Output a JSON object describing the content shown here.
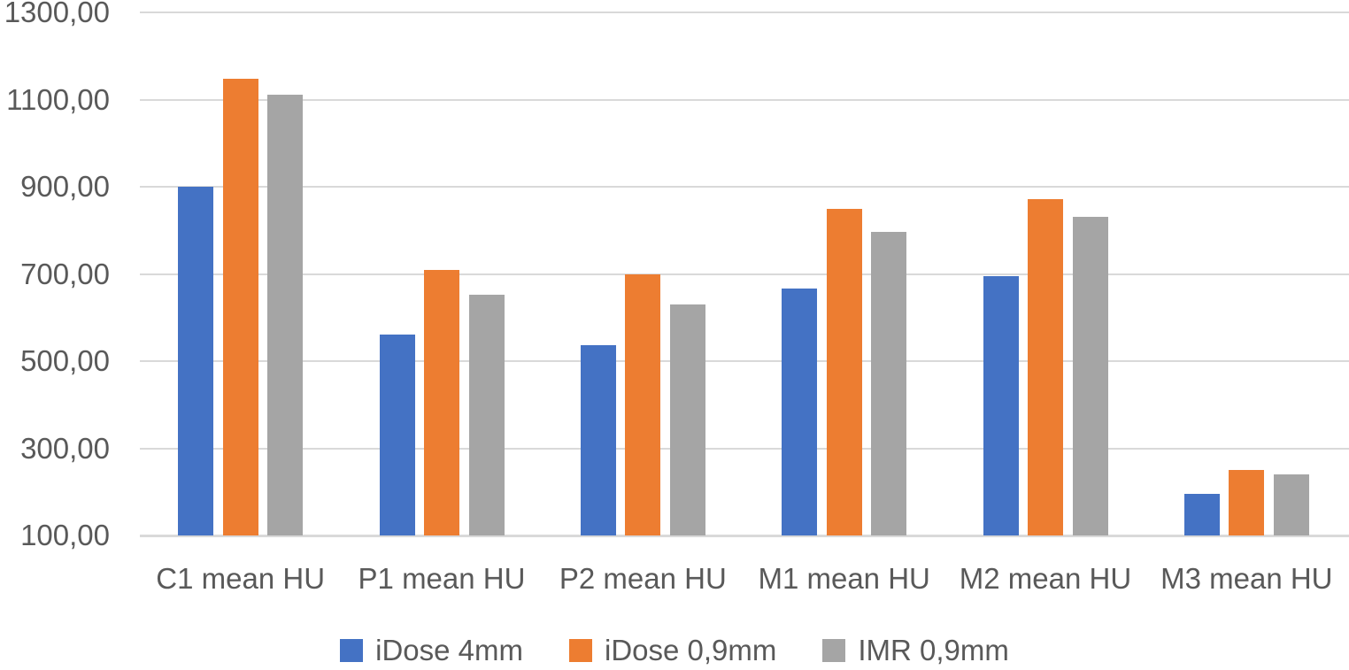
{
  "chart_data": {
    "type": "bar",
    "title": "",
    "xlabel": "",
    "ylabel": "",
    "categories": [
      "C1 mean HU",
      "P1 mean HU",
      "P2 mean HU",
      "M1 mean HU",
      "M2 mean HU",
      "M3 mean HU"
    ],
    "series": [
      {
        "name": "iDose 4mm",
        "color": "#4472C4",
        "values": [
          900,
          560,
          537,
          666,
          695,
          195
        ]
      },
      {
        "name": "iDose 0,9mm",
        "color": "#ED7D31",
        "values": [
          1147,
          710,
          699,
          850,
          871,
          251
        ]
      },
      {
        "name": "IMR 0,9mm",
        "color": "#A5A5A5",
        "values": [
          1112,
          652,
          630,
          797,
          830,
          241
        ]
      }
    ],
    "y_axis": {
      "min": 100,
      "max": 1300,
      "step": 200,
      "tick_values": [
        1300,
        1100,
        900,
        700,
        500,
        300,
        100
      ],
      "tick_labels": [
        "1300,00",
        "1100,00",
        "900,00",
        "700,00",
        "500,00",
        "300,00",
        "100,00"
      ]
    },
    "grid": true,
    "legend_position": "bottom",
    "colors": {
      "gridline": "#D9D9D9",
      "axis_text": "#595959",
      "background": "#FFFFFF"
    }
  }
}
